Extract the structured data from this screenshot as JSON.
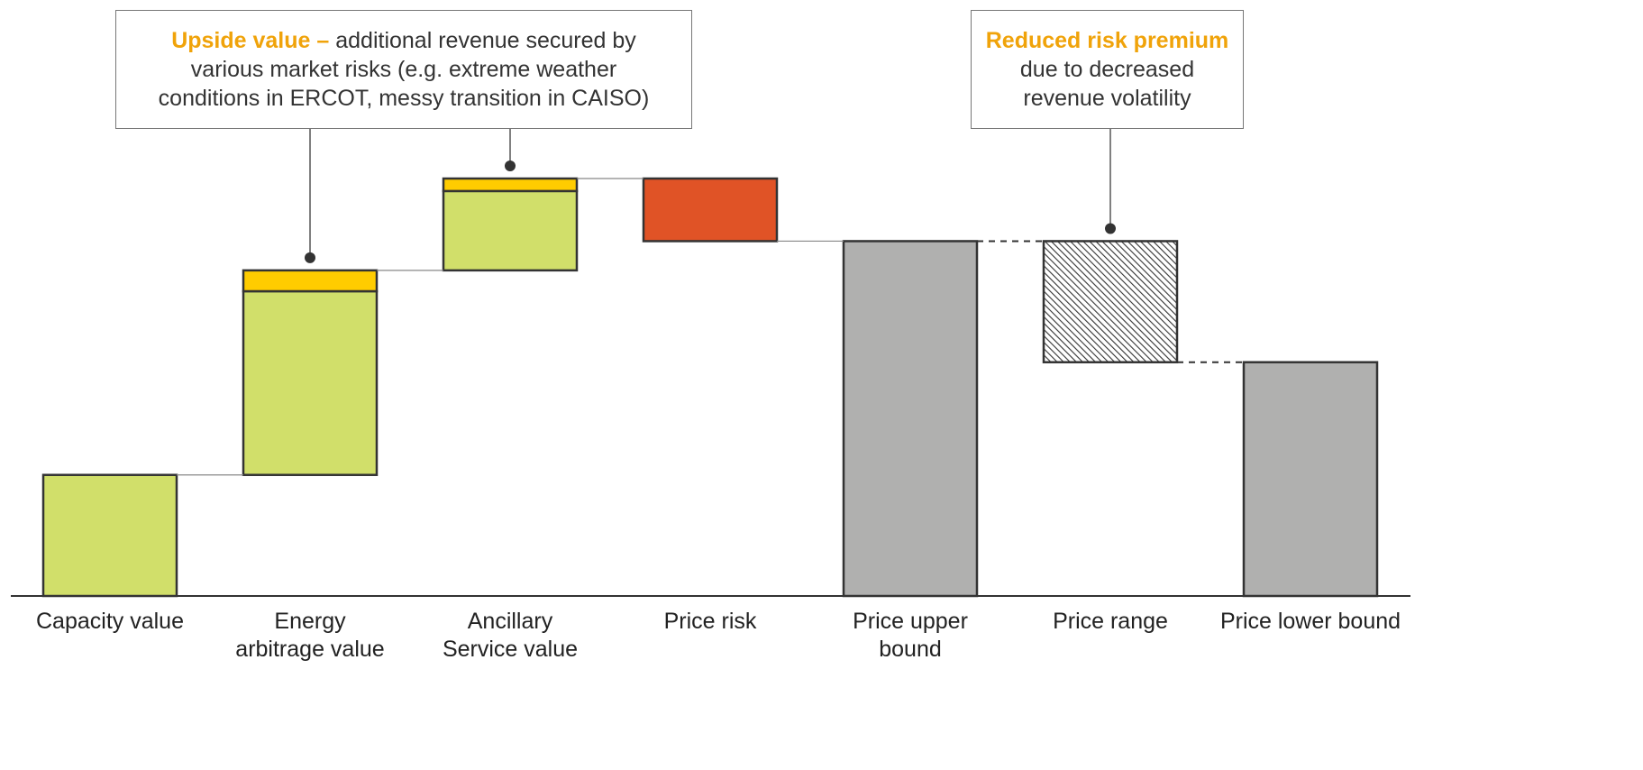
{
  "chart_data": {
    "type": "waterfall",
    "categories": [
      "Capacity value",
      "Energy\narbitrage value",
      "Ancillary\nService value",
      "Price risk",
      "Price upper\nbound",
      "Price range",
      "Price lower bound"
    ],
    "values": [
      29,
      44,
      19,
      -15,
      85,
      -29,
      56
    ],
    "upside": [
      null,
      5,
      3,
      null,
      null,
      null,
      null
    ],
    "totals": [
      false,
      false,
      false,
      false,
      true,
      false,
      true
    ],
    "colors": [
      "#d1df6a",
      "#d1df6a",
      "#d1df6a",
      "#e05326",
      "#b0b0af",
      "hatch",
      "#b0b0af"
    ],
    "upside_color": "#ffcc00",
    "connector_styles": [
      "solid",
      "solid",
      "solid",
      "solid",
      "dashed",
      "dashed"
    ],
    "ylim": [
      0,
      100
    ],
    "annotations": [
      {
        "highlight": "Upside value –",
        "text": "additional revenue secured by\nvarious market risks (e.g. extreme weather\nconditions in ERCOT, messy transition in CAISO)",
        "targets": [
          1,
          2
        ],
        "highlight_block": false
      },
      {
        "highlight": "Reduced risk premium",
        "text": "due to decreased\nrevenue volatility",
        "targets": [
          5
        ],
        "highlight_block": true
      }
    ]
  }
}
